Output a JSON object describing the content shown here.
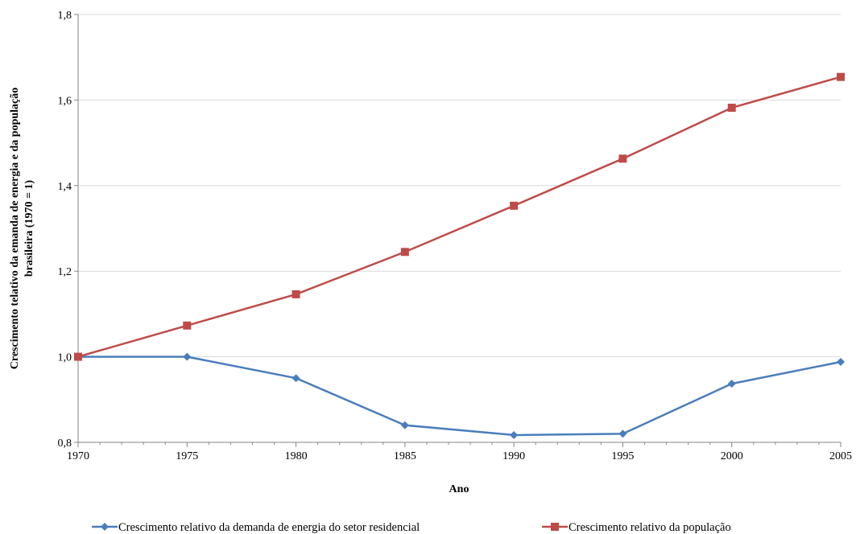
{
  "chart_data": {
    "type": "line",
    "title": "",
    "xlabel": "Ano",
    "ylabel_lines": [
      "Crescimento telativo da emanda de energia e da população",
      "brasileira (1970 = 1)"
    ],
    "categories": [
      "1970",
      "1975",
      "1980",
      "1985",
      "1990",
      "1995",
      "2000",
      "2005"
    ],
    "ylim": [
      0.8,
      1.8
    ],
    "yticks": [
      "0,8",
      "1,0",
      "1,2",
      "1,4",
      "1,6",
      "1,8"
    ],
    "grid": "horizontal",
    "legend_position": "bottom",
    "series": [
      {
        "name": "Crescimento relativo da demanda de energia do setor residencial",
        "color": "#4a7ebb",
        "marker": "diamond",
        "values": [
          1.0,
          1.0,
          0.95,
          0.84,
          0.817,
          0.82,
          0.937,
          0.988
        ]
      },
      {
        "name": "Crescimento relativo da população",
        "color": "#be4b48",
        "marker": "square",
        "values": [
          1.0,
          1.073,
          1.146,
          1.245,
          1.353,
          1.463,
          1.582,
          1.654
        ]
      }
    ]
  }
}
